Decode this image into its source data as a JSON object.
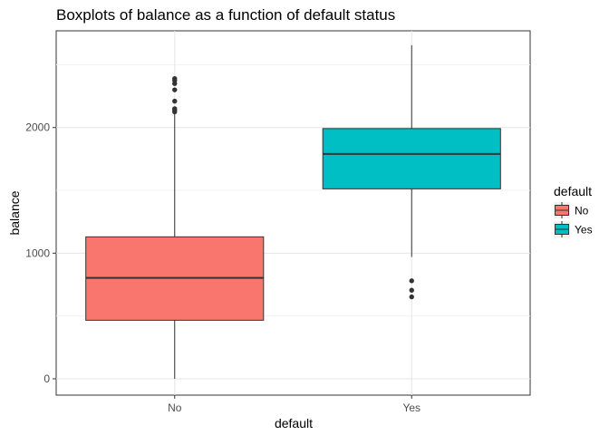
{
  "chart_data": {
    "type": "boxplot",
    "title": "Boxplots of balance as a function of default status",
    "xlabel": "default",
    "ylabel": "balance",
    "ylim": [
      -130,
      2770
    ],
    "yticks": [
      0,
      1000,
      2000
    ],
    "grid": true,
    "categories": [
      "No",
      "Yes"
    ],
    "boxes": [
      {
        "category": "No",
        "min": 0,
        "q1": 466,
        "median": 803,
        "q3": 1130,
        "max": 2115,
        "outliers": [
          2125,
          2140,
          2150,
          2210,
          2300,
          2350,
          2375,
          2390
        ],
        "color": "#F8766D"
      },
      {
        "category": "Yes",
        "min": 970,
        "q1": 1512,
        "median": 1790,
        "q3": 1992,
        "max": 2655,
        "outliers": [
          652,
          705,
          780
        ],
        "color": "#00BFC4"
      }
    ],
    "legend": {
      "title": "default",
      "position": "right",
      "entries": [
        {
          "label": "No",
          "color": "#F8766D"
        },
        {
          "label": "Yes",
          "color": "#00BFC4"
        }
      ]
    }
  }
}
